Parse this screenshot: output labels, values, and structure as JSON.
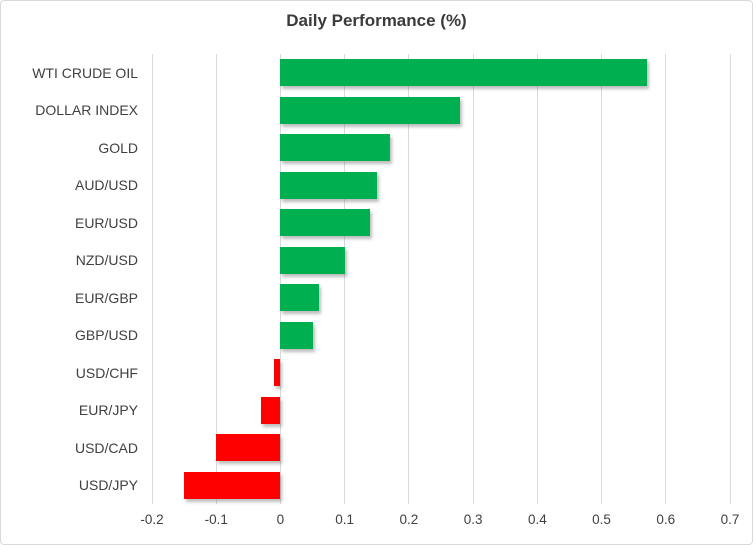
{
  "chart_data": {
    "type": "bar",
    "orientation": "horizontal",
    "title": "Daily Performance (%)",
    "categories": [
      "WTI CRUDE OIL",
      "DOLLAR INDEX",
      "GOLD",
      "AUD/USD",
      "EUR/USD",
      "NZD/USD",
      "EUR/GBP",
      "GBP/USD",
      "USD/CHF",
      "EUR/JPY",
      "USD/CAD",
      "USD/JPY"
    ],
    "values": [
      0.57,
      0.28,
      0.17,
      0.15,
      0.14,
      0.1,
      0.06,
      0.05,
      -0.01,
      -0.03,
      -0.1,
      -0.15
    ],
    "xlim": [
      -0.2,
      0.7
    ],
    "xticks": [
      -0.2,
      -0.1,
      0,
      0.1,
      0.2,
      0.3,
      0.4,
      0.5,
      0.6,
      0.7
    ],
    "xtick_labels": [
      "-0.2",
      "-0.1",
      "0",
      "0.1",
      "0.2",
      "0.3",
      "0.4",
      "0.5",
      "0.6",
      "0.7"
    ],
    "grid": true,
    "legend": false,
    "xlabel": "",
    "ylabel": "",
    "colors": {
      "positive": "#00B050",
      "negative": "#FF0000",
      "gridline": "#D9D9D9",
      "text": "#404040",
      "title_text": "#3B3B3B",
      "border": "#D9D9D9"
    }
  }
}
